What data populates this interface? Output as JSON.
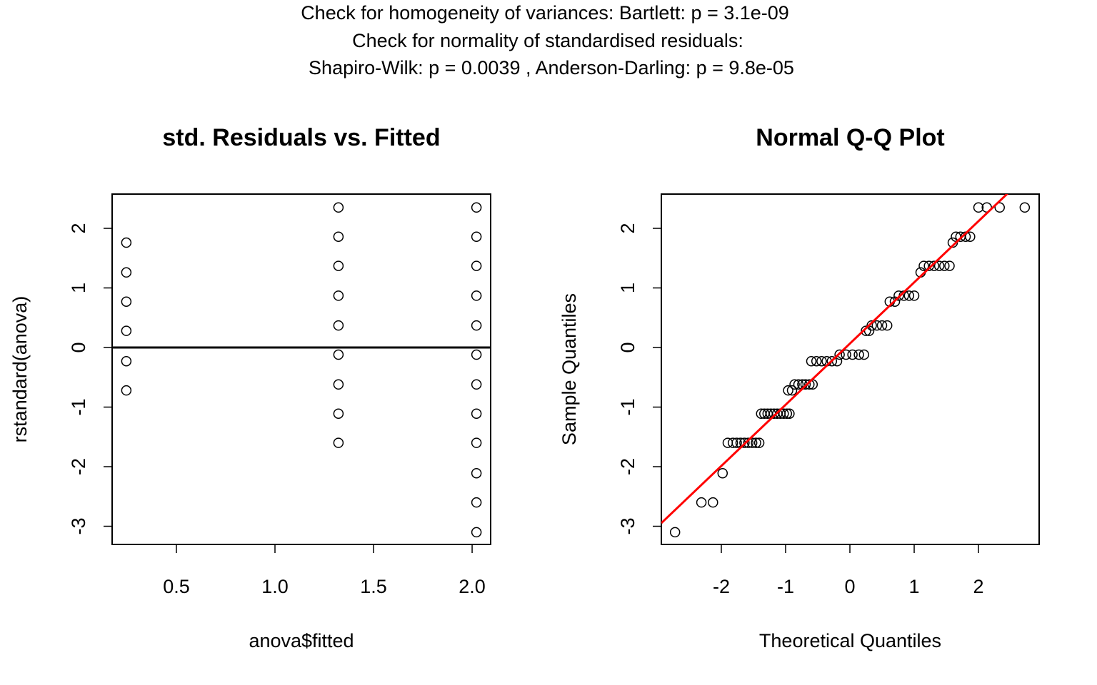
{
  "title_lines": [
    "Check for homogeneity of variances: Bartlett: p =  3.1e-09",
    "Check for normality of standardised residuals:",
    "Shapiro-Wilk: p =  0.0039 , Anderson-Darling: p =  9.8e-05"
  ],
  "chart_data": [
    {
      "type": "scatter",
      "title": "std. Residuals vs. Fitted",
      "x_label": "anova$fitted",
      "y_label": "rstandard(anova)",
      "x": [
        0.246,
        0.246,
        0.246,
        0.246,
        0.246,
        0.246,
        1.322,
        1.322,
        1.322,
        1.322,
        1.322,
        1.322,
        1.322,
        1.322,
        1.322,
        2.022,
        2.022,
        2.022,
        2.022,
        2.022,
        2.022,
        2.022,
        2.022,
        2.022,
        2.022,
        2.022,
        2.022
      ],
      "values": [
        1.76,
        1.26,
        0.77,
        0.28,
        -0.23,
        -0.72,
        2.35,
        1.86,
        1.37,
        0.87,
        0.37,
        -0.12,
        -0.62,
        -1.11,
        -1.6,
        2.35,
        1.86,
        1.37,
        0.87,
        0.37,
        -0.12,
        -0.62,
        -1.11,
        -1.6,
        -2.11,
        -2.6,
        -3.1
      ],
      "color": "#000000",
      "hline": 0,
      "hline_color": "#000000",
      "xlim": [
        0.174,
        2.094
      ],
      "ylim": [
        -3.305,
        2.575
      ],
      "xticks": [
        0.5,
        {
          "value": 1,
          "label": "1.0"
        },
        1.5,
        {
          "value": 2,
          "label": "2.0"
        }
      ],
      "yticks": [
        -3,
        -2,
        -1,
        0,
        1,
        2
      ]
    },
    {
      "type": "qq",
      "title": "Normal Q-Q Plot",
      "x_label": "Theoretical Quantiles",
      "y_label": "Sample Quantiles",
      "x": [
        -2.72,
        -2.31,
        -2.13,
        -1.98,
        -1.9,
        -1.82,
        -1.76,
        -1.7,
        -1.64,
        -1.58,
        -1.52,
        -1.46,
        -1.41,
        -1.38,
        -1.33,
        -1.28,
        -1.23,
        -1.18,
        -1.13,
        -1.08,
        -1.03,
        -0.98,
        -0.94,
        -0.96,
        -0.9,
        -0.86,
        -0.8,
        -0.74,
        -0.69,
        -0.63,
        -0.58,
        -0.6,
        -0.52,
        -0.44,
        -0.36,
        -0.28,
        -0.2,
        -0.16,
        -0.06,
        0.04,
        0.14,
        0.22,
        0.25,
        0.3,
        0.34,
        0.42,
        0.5,
        0.58,
        0.62,
        0.7,
        0.76,
        0.84,
        0.92,
        1.0,
        1.1,
        1.15,
        1.23,
        1.31,
        1.39,
        1.47,
        1.55,
        1.6,
        1.65,
        1.72,
        1.8,
        1.87,
        2.0,
        2.13,
        2.33,
        2.72
      ],
      "values": [
        -3.1,
        -2.6,
        -2.6,
        -2.11,
        -1.6,
        -1.6,
        -1.6,
        -1.6,
        -1.6,
        -1.6,
        -1.6,
        -1.6,
        -1.6,
        -1.11,
        -1.11,
        -1.11,
        -1.11,
        -1.11,
        -1.11,
        -1.11,
        -1.11,
        -1.11,
        -1.11,
        -0.72,
        -0.72,
        -0.62,
        -0.62,
        -0.62,
        -0.62,
        -0.62,
        -0.62,
        -0.23,
        -0.23,
        -0.23,
        -0.23,
        -0.23,
        -0.23,
        -0.12,
        -0.12,
        -0.12,
        -0.12,
        -0.12,
        0.28,
        0.28,
        0.37,
        0.37,
        0.37,
        0.37,
        0.77,
        0.77,
        0.87,
        0.87,
        0.87,
        0.87,
        1.26,
        1.37,
        1.37,
        1.37,
        1.37,
        1.37,
        1.37,
        1.76,
        1.86,
        1.86,
        1.86,
        1.86,
        2.35,
        2.35,
        2.35,
        2.35
      ],
      "color": "#000000",
      "line": {
        "intercept": 0.066,
        "slope": 1.027,
        "color": "#ff0000"
      },
      "xlim": [
        -2.933,
        2.944
      ],
      "ylim": [
        -3.305,
        2.575
      ],
      "xticks": [
        -2,
        -1,
        0,
        1,
        2
      ],
      "yticks": [
        -3,
        -2,
        -1,
        0,
        1,
        2
      ]
    }
  ]
}
